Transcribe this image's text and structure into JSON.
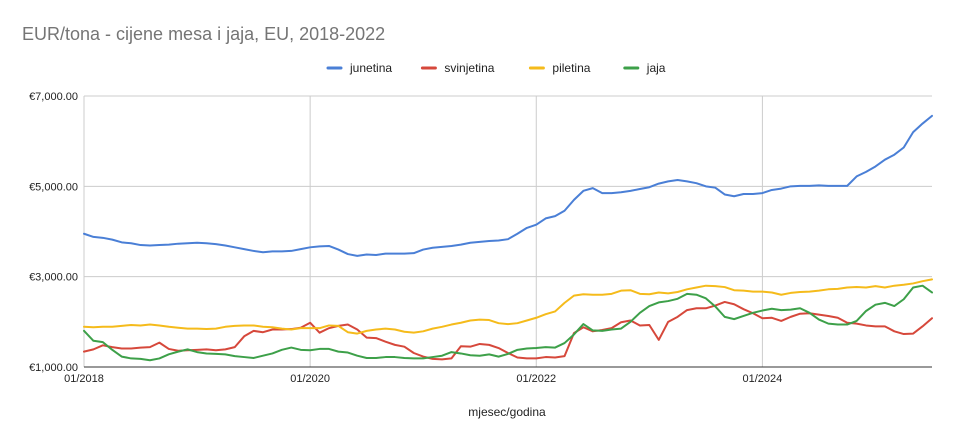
{
  "chart_data": {
    "type": "line",
    "title": "EUR/tona - cijene mesa i jaja, EU, 2018-2022",
    "xlabel": "mjesec/godina",
    "ylabel": "",
    "ylim": [
      1000,
      7000
    ],
    "yticks": [
      1000,
      3000,
      5000,
      7000
    ],
    "ytick_labels": [
      "€1,000.00",
      "€3,000.00",
      "€5,000.00",
      "€7,000.00"
    ],
    "x_start": "2018-01",
    "xticks": [
      "01/2018",
      "01/2020",
      "01/2022",
      "01/2024"
    ],
    "legend_position": "top",
    "grid": true,
    "series": [
      {
        "name": "junetina",
        "color": "#4a7fd6",
        "values": [
          3950,
          3880,
          3860,
          3820,
          3760,
          3740,
          3700,
          3690,
          3700,
          3710,
          3730,
          3740,
          3750,
          3740,
          3720,
          3690,
          3650,
          3610,
          3570,
          3540,
          3560,
          3560,
          3570,
          3610,
          3650,
          3670,
          3680,
          3600,
          3500,
          3460,
          3490,
          3480,
          3510,
          3510,
          3510,
          3520,
          3600,
          3640,
          3660,
          3680,
          3710,
          3750,
          3770,
          3790,
          3800,
          3830,
          3950,
          4080,
          4150,
          4290,
          4340,
          4460,
          4700,
          4900,
          4960,
          4850,
          4850,
          4870,
          4900,
          4940,
          4980,
          5060,
          5110,
          5140,
          5110,
          5070,
          5000,
          4970,
          4820,
          4780,
          4830,
          4830,
          4850,
          4920,
          4950,
          5000,
          5010,
          5010,
          5020,
          5010,
          5010,
          5010,
          5220,
          5320,
          5440,
          5590,
          5700,
          5860,
          6200,
          6390,
          6560
        ]
      },
      {
        "name": "svinjetina",
        "color": "#d6483b",
        "values": [
          1340,
          1390,
          1480,
          1440,
          1410,
          1410,
          1430,
          1440,
          1540,
          1400,
          1360,
          1370,
          1380,
          1390,
          1370,
          1390,
          1440,
          1680,
          1800,
          1770,
          1830,
          1830,
          1840,
          1870,
          1980,
          1760,
          1860,
          1910,
          1940,
          1830,
          1650,
          1640,
          1560,
          1490,
          1450,
          1310,
          1230,
          1180,
          1170,
          1190,
          1460,
          1450,
          1510,
          1490,
          1420,
          1310,
          1210,
          1190,
          1190,
          1220,
          1210,
          1240,
          1750,
          1880,
          1790,
          1820,
          1860,
          1990,
          2030,
          1920,
          1930,
          1600,
          2000,
          2110,
          2260,
          2300,
          2300,
          2360,
          2440,
          2390,
          2280,
          2190,
          2080,
          2090,
          2020,
          2110,
          2180,
          2190,
          2160,
          2130,
          2090,
          1980,
          1960,
          1920,
          1900,
          1900,
          1790,
          1730,
          1740,
          1900,
          2080
        ]
      },
      {
        "name": "piletina",
        "color": "#f5bb1b",
        "values": [
          1890,
          1880,
          1890,
          1890,
          1910,
          1930,
          1920,
          1940,
          1920,
          1890,
          1870,
          1850,
          1850,
          1840,
          1850,
          1890,
          1910,
          1920,
          1920,
          1890,
          1880,
          1850,
          1830,
          1860,
          1860,
          1860,
          1920,
          1910,
          1770,
          1740,
          1800,
          1830,
          1850,
          1830,
          1780,
          1760,
          1790,
          1850,
          1890,
          1940,
          1980,
          2030,
          2050,
          2040,
          1970,
          1950,
          1970,
          2030,
          2090,
          2170,
          2230,
          2420,
          2580,
          2610,
          2600,
          2600,
          2620,
          2690,
          2700,
          2620,
          2610,
          2650,
          2630,
          2660,
          2720,
          2760,
          2800,
          2790,
          2770,
          2700,
          2690,
          2670,
          2670,
          2650,
          2600,
          2640,
          2660,
          2670,
          2690,
          2720,
          2730,
          2760,
          2770,
          2760,
          2790,
          2760,
          2800,
          2820,
          2850,
          2900,
          2940
        ]
      },
      {
        "name": "jaja",
        "color": "#3da049",
        "values": [
          1800,
          1580,
          1550,
          1380,
          1230,
          1190,
          1180,
          1150,
          1190,
          1280,
          1340,
          1390,
          1330,
          1300,
          1290,
          1280,
          1240,
          1220,
          1200,
          1250,
          1300,
          1380,
          1430,
          1380,
          1370,
          1400,
          1400,
          1340,
          1320,
          1250,
          1200,
          1200,
          1220,
          1220,
          1200,
          1190,
          1190,
          1220,
          1250,
          1330,
          1300,
          1260,
          1250,
          1280,
          1230,
          1290,
          1380,
          1410,
          1420,
          1440,
          1430,
          1530,
          1720,
          1950,
          1810,
          1800,
          1830,
          1850,
          2000,
          2200,
          2350,
          2430,
          2460,
          2510,
          2620,
          2600,
          2520,
          2340,
          2110,
          2060,
          2130,
          2200,
          2250,
          2290,
          2260,
          2270,
          2300,
          2200,
          2050,
          1960,
          1940,
          1940,
          2020,
          2240,
          2380,
          2420,
          2350,
          2500,
          2760,
          2800,
          2650
        ]
      }
    ]
  }
}
